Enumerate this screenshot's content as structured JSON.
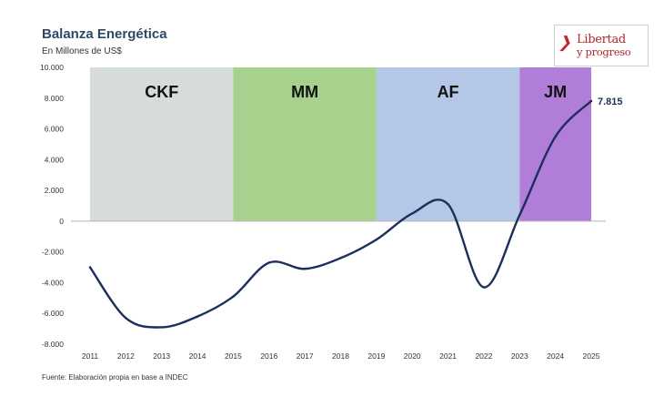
{
  "chart_data": {
    "type": "line",
    "title": "Balanza Energética",
    "subtitle": "En Millones de US$",
    "xlabel": "",
    "ylabel": "",
    "x": [
      "2011",
      "2012",
      "2013",
      "2014",
      "2015",
      "2016",
      "2017",
      "2018",
      "2019",
      "2020",
      "2021",
      "2022",
      "2023",
      "2024",
      "2025"
    ],
    "series": [
      {
        "name": "Balanza Energética",
        "color": "#1c2f5c",
        "values": [
          -3000,
          -6300,
          -6900,
          -6200,
          -4900,
          -2700,
          -3100,
          -2400,
          -1200,
          500,
          1100,
          -4300,
          400,
          5500,
          7815
        ]
      }
    ],
    "ylim": [
      -8000,
      10000
    ],
    "yticks": [
      10000,
      8000,
      6000,
      4000,
      2000,
      0,
      -2000,
      -4000,
      -6000,
      -8000
    ],
    "ytick_labels": [
      "10.000",
      "8.000",
      "6.000",
      "4.000",
      "2.000",
      "0",
      "-2.000",
      "-4.000",
      "-6.000",
      "-8.000"
    ],
    "periods": [
      {
        "label": "CKF",
        "start": "2011",
        "end": "2015",
        "color": "#d6dcd9"
      },
      {
        "label": "MM",
        "start": "2015",
        "end": "2019",
        "color": "#a9d18e"
      },
      {
        "label": "AF",
        "start": "2019",
        "end": "2023",
        "color": "#b4c7e7"
      },
      {
        "label": "JM",
        "start": "2023",
        "end": "2025",
        "color": "#b07dd8"
      }
    ],
    "annotations": [
      {
        "x": "2025",
        "text": "7.815"
      }
    ],
    "grid": false,
    "legend": "none"
  },
  "logo": {
    "line1": "Libertad",
    "line2": "y progreso"
  },
  "source": "Fuente: Elaboración propia en base a INDEC"
}
